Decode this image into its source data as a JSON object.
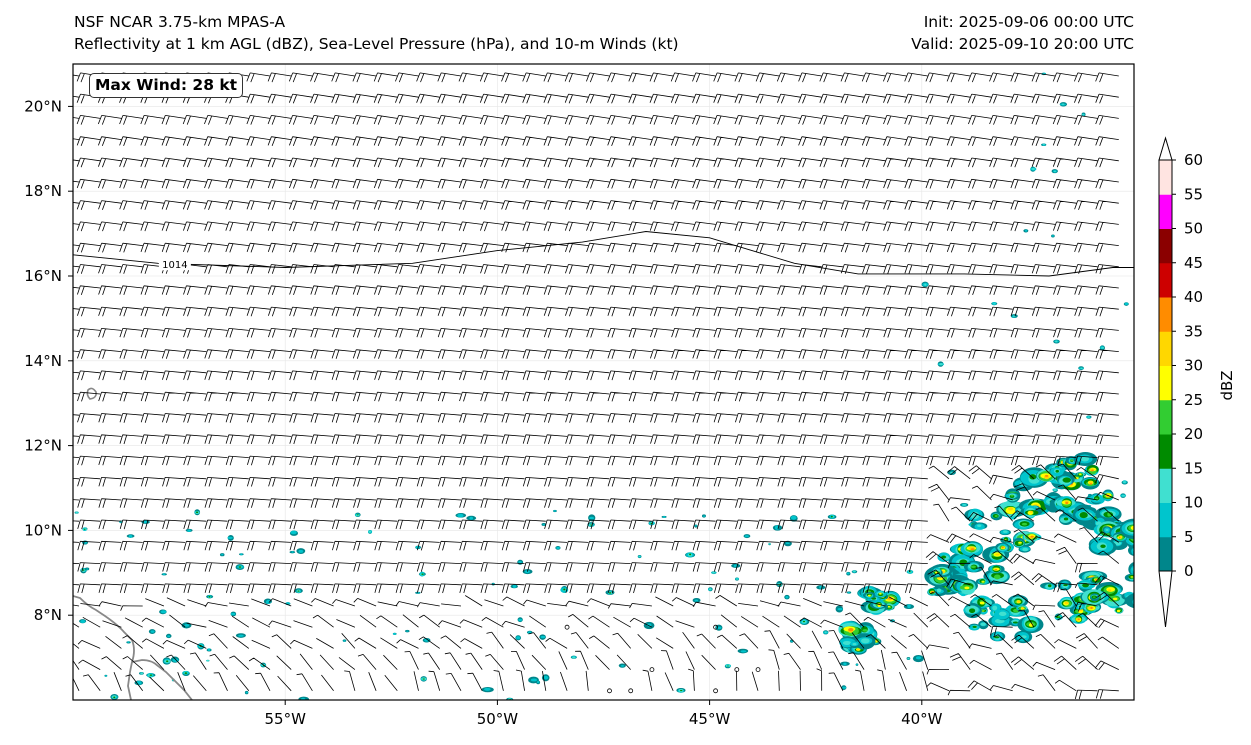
{
  "header": {
    "model_line": "NSF NCAR 3.75-km MPAS-A",
    "fields_line": "Reflectivity at 1 km AGL (dBZ), Sea-Level Pressure (hPa), and 10-m Winds (kt)",
    "init_line": "Init: 2025-09-06 00:00 UTC",
    "valid_line": "Valid: 2025-09-10 20:00 UTC"
  },
  "map": {
    "lon_range": [
      -60,
      -35
    ],
    "lat_range": [
      6,
      21
    ],
    "lon_ticks": [
      {
        "value": -55,
        "label": "55°W"
      },
      {
        "value": -50,
        "label": "50°W"
      },
      {
        "value": -45,
        "label": "45°W"
      },
      {
        "value": -40,
        "label": "40°W"
      }
    ],
    "lat_ticks": [
      {
        "value": 8,
        "label": "8°N"
      },
      {
        "value": 10,
        "label": "10°N"
      },
      {
        "value": 12,
        "label": "12°N"
      },
      {
        "value": 14,
        "label": "14°N"
      },
      {
        "value": 16,
        "label": "16°N"
      },
      {
        "value": 18,
        "label": "18°N"
      },
      {
        "value": 20,
        "label": "20°N"
      }
    ],
    "max_wind_label": "Max Wind: 28 kt",
    "isobar": {
      "label": "1014",
      "points": [
        [
          -60,
          16.5
        ],
        [
          -58,
          16.3
        ],
        [
          -55,
          16.2
        ],
        [
          -52,
          16.3
        ],
        [
          -50,
          16.6
        ],
        [
          -48,
          16.8
        ],
        [
          -46.5,
          17.05
        ],
        [
          -45,
          16.9
        ],
        [
          -44,
          16.6
        ],
        [
          -43,
          16.3
        ],
        [
          -41.5,
          16.05
        ],
        [
          -39,
          16.05
        ],
        [
          -37,
          16.0
        ],
        [
          -35.5,
          16.2
        ],
        [
          -35,
          16.2
        ]
      ]
    }
  },
  "colorbar": {
    "label": "dBZ",
    "levels": [
      "0",
      "5",
      "10",
      "15",
      "20",
      "25",
      "30",
      "35",
      "40",
      "45",
      "50",
      "55",
      "60"
    ],
    "colors": [
      "#00868b",
      "#00c5cd",
      "#40e0d0",
      "#008b00",
      "#32cd32",
      "#ffff00",
      "#ffd700",
      "#ff8c00",
      "#cd0000",
      "#8b0000",
      "#ff00ff",
      "#ffe4e1"
    ]
  }
}
